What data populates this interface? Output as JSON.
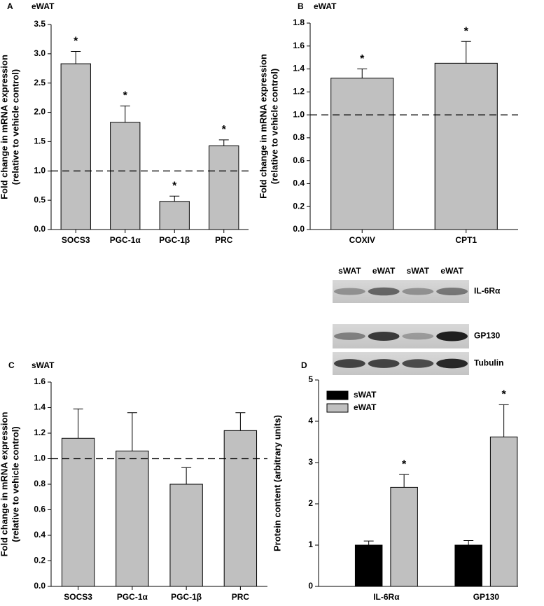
{
  "chart_data": [
    {
      "type": "bar",
      "panel": "A",
      "title": "eWAT",
      "ylabel": [
        "Fold change in mRNA expression",
        "(relative to vehicle control)"
      ],
      "categories": [
        "SOCS3",
        "PGC-1α",
        "PGC-1β",
        "PRC"
      ],
      "values": [
        2.83,
        1.83,
        0.48,
        1.43
      ],
      "errors": [
        0.21,
        0.28,
        0.09,
        0.1
      ],
      "significance": [
        "*",
        "*",
        "*",
        "*"
      ],
      "color": "#c0c0c0",
      "reference_line": 1,
      "ylim": [
        0,
        3.5
      ],
      "yticks": [
        {
          "value": 0,
          "label": "0.0"
        },
        0.5,
        {
          "value": 1,
          "label": "1.0"
        },
        1.5,
        {
          "value": 2,
          "label": "2.0"
        },
        2.5,
        {
          "value": 3,
          "label": "3.0"
        },
        3.5
      ]
    },
    {
      "type": "bar",
      "panel": "B",
      "title": "eWAT",
      "ylabel": [
        "Fold change in mRNA expression",
        "(relative to vehicle control)"
      ],
      "categories": [
        "COXIV",
        "CPT1"
      ],
      "values": [
        1.32,
        1.45
      ],
      "errors": [
        0.08,
        0.19
      ],
      "significance": [
        "*",
        "*"
      ],
      "color": "#c0c0c0",
      "reference_line": 1,
      "ylim": [
        0,
        1.8
      ],
      "yticks": [
        {
          "value": 0,
          "label": "0.0"
        },
        0.2,
        0.4,
        0.6,
        0.8,
        {
          "value": 1,
          "label": "1.0"
        },
        1.2,
        1.4,
        1.6,
        1.8
      ]
    },
    {
      "type": "bar",
      "panel": "C",
      "title": "sWAT",
      "ylabel": [
        "Fold change in mRNA expression",
        "(relative to vehicle control)"
      ],
      "categories": [
        "SOCS3",
        "PGC-1α",
        "PGC-1β",
        "PRC"
      ],
      "values": [
        1.16,
        1.06,
        0.8,
        1.22
      ],
      "errors": [
        0.23,
        0.3,
        0.13,
        0.14
      ],
      "color": "#c0c0c0",
      "reference_line": 1,
      "ylim": [
        0,
        1.6
      ],
      "yticks": [
        {
          "value": 0,
          "label": "0.0"
        },
        0.2,
        0.4,
        0.6,
        0.8,
        {
          "value": 1,
          "label": "1.0"
        },
        1.2,
        1.4,
        1.6
      ]
    },
    {
      "type": "grouped_bar",
      "panel": "D",
      "ylabel": [
        "Protein content (arbitrary units)"
      ],
      "categories": [
        "IL-6Rα",
        "GP130"
      ],
      "series": [
        {
          "name": "sWAT",
          "color": "#000000",
          "values": [
            1,
            1
          ],
          "errors": [
            0.1,
            0.11
          ]
        },
        {
          "name": "eWAT",
          "color": "#c0c0c0",
          "values": [
            2.4,
            3.62
          ],
          "errors": [
            0.31,
            0.78
          ],
          "significance": [
            "*",
            "*"
          ]
        }
      ],
      "legend": "upper left",
      "ylim": [
        0,
        5
      ],
      "yticks": [
        0,
        1,
        2,
        3,
        4,
        5
      ],
      "blot": {
        "lanes": [
          "sWAT",
          "eWAT",
          "sWAT",
          "eWAT"
        ],
        "rows": [
          "IL-6Rα",
          "GP130",
          "Tubulin"
        ]
      }
    }
  ]
}
